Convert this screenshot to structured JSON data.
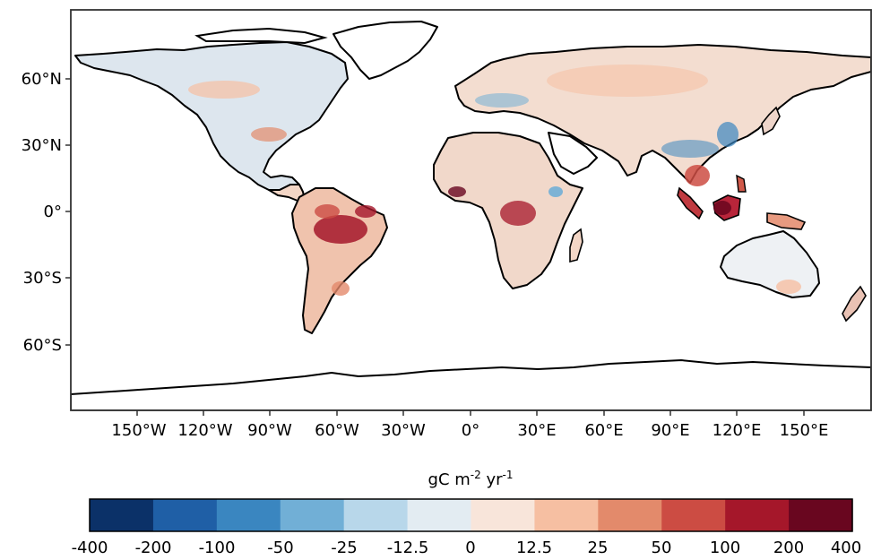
{
  "map": {
    "lat_ticks": [
      "60°N",
      "30°N",
      "0°",
      "30°S",
      "60°S"
    ],
    "lon_ticks": [
      "150°W",
      "120°W",
      "90°W",
      "60°W",
      "30°W",
      "0°",
      "30°E",
      "60°E",
      "90°E",
      "120°E",
      "150°E"
    ]
  },
  "colorbar": {
    "label_main": "gC m",
    "label_exp1": "-2",
    "label_mid": " yr",
    "label_exp2": "-1",
    "ticks": [
      "-400",
      "-200",
      "-100",
      "-50",
      "-25",
      "-12.5",
      "0",
      "12.5",
      "25",
      "50",
      "100",
      "200",
      "400"
    ],
    "colors": [
      "#0b3168",
      "#1f5fa6",
      "#3a86c0",
      "#71afd6",
      "#b8d7ea",
      "#e3ecf2",
      "#f8e5da",
      "#f6bfa2",
      "#e38a6b",
      "#cc4c43",
      "#a5172a",
      "#69061f"
    ]
  }
}
